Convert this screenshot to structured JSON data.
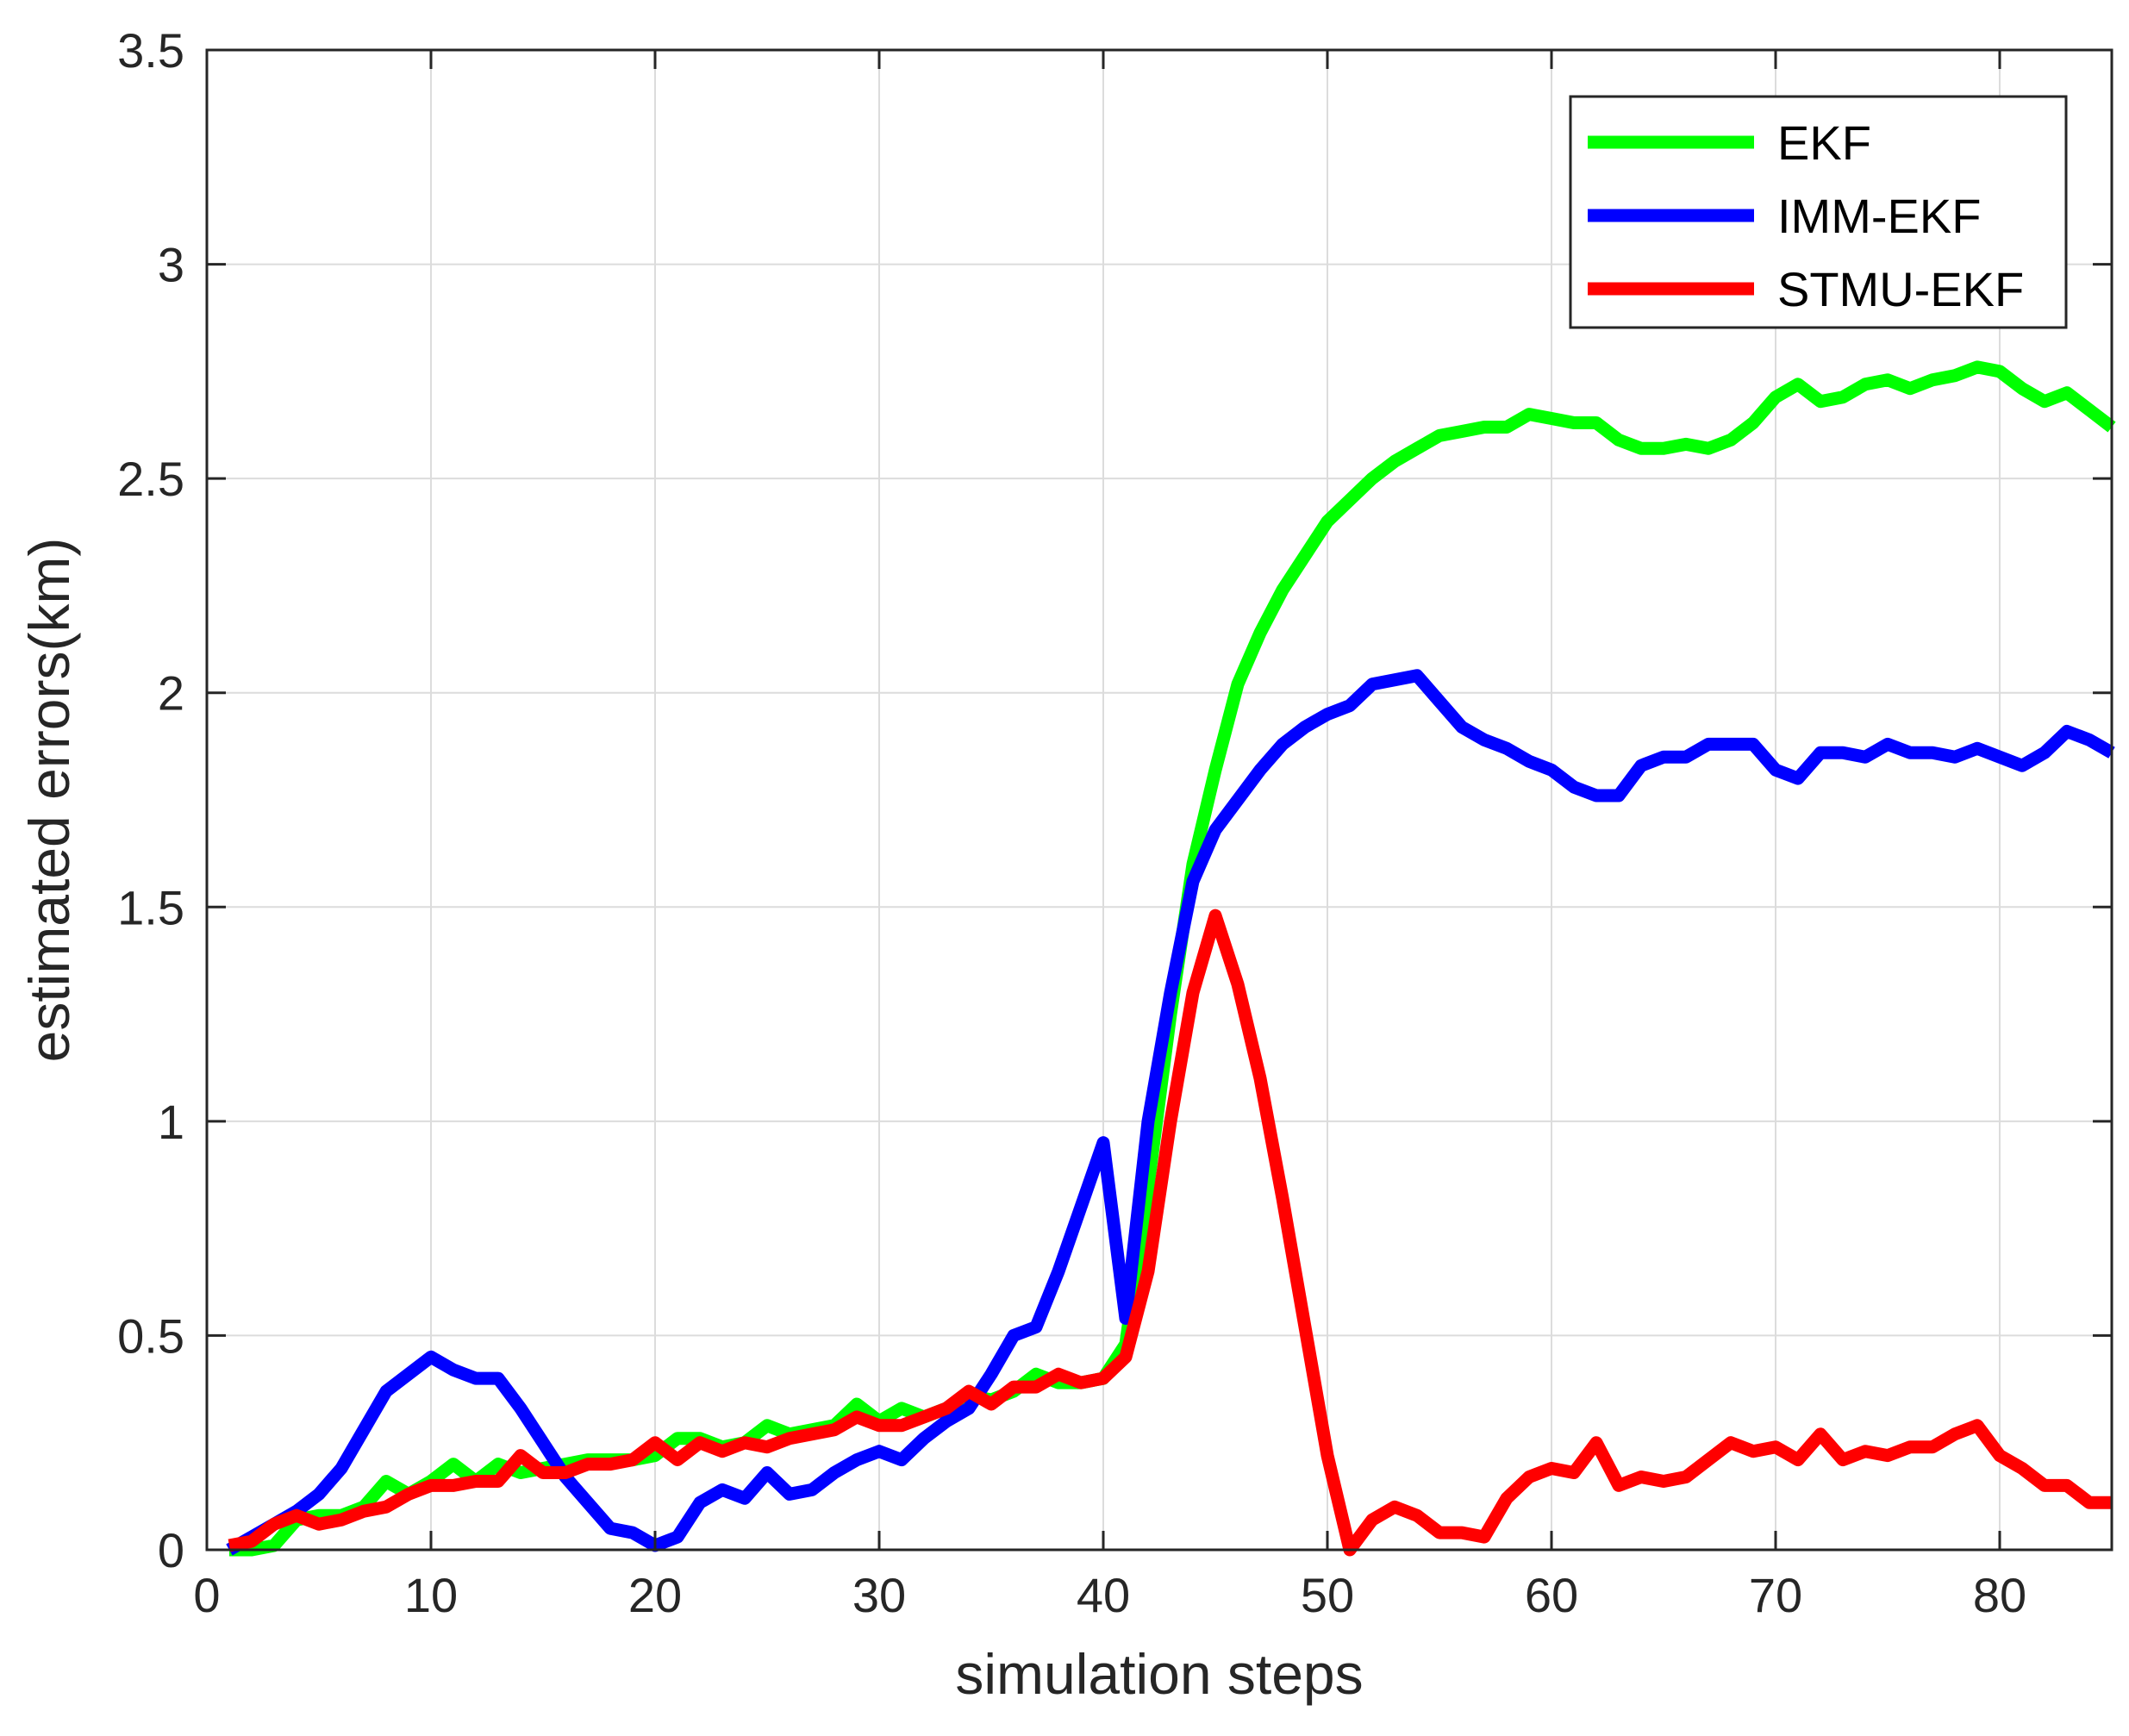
{
  "chart_data": {
    "type": "line",
    "title": "",
    "xlabel": "simulation steps",
    "ylabel": "estimated errors(km)",
    "xlim": [
      0,
      85
    ],
    "ylim": [
      0,
      3.5
    ],
    "xticks": [
      0,
      10,
      20,
      30,
      40,
      50,
      60,
      70,
      80
    ],
    "yticks": [
      0,
      0.5,
      1,
      1.5,
      2,
      2.5,
      3,
      3.5
    ],
    "xtick_labels": [
      "0",
      "10",
      "20",
      "30",
      "40",
      "50",
      "60",
      "70",
      "80"
    ],
    "ytick_labels": [
      "0",
      "0.5",
      "1",
      "1.5",
      "2",
      "2.5",
      "3",
      "3.5"
    ],
    "grid": true,
    "legend_position": "top-right",
    "x": [
      1,
      2,
      3,
      4,
      5,
      6,
      7,
      8,
      9,
      10,
      11,
      12,
      13,
      14,
      15,
      16,
      17,
      18,
      19,
      20,
      21,
      22,
      23,
      24,
      25,
      26,
      27,
      28,
      29,
      30,
      31,
      32,
      33,
      34,
      35,
      36,
      37,
      38,
      39,
      40,
      41,
      42,
      43,
      44,
      45,
      46,
      47,
      48,
      49,
      50,
      51,
      52,
      53,
      54,
      55,
      56,
      57,
      58,
      59,
      60,
      61,
      62,
      63,
      64,
      65,
      66,
      67,
      68,
      69,
      70,
      71,
      72,
      73,
      74,
      75,
      76,
      77,
      78,
      79,
      80,
      81,
      82,
      83,
      84,
      85
    ],
    "series": [
      {
        "name": "EKF",
        "color": "#00ff00",
        "values": [
          0.0,
          0.0,
          0.01,
          0.07,
          0.08,
          0.08,
          0.1,
          0.16,
          0.13,
          0.16,
          0.2,
          0.16,
          0.2,
          0.18,
          0.19,
          0.2,
          0.21,
          0.21,
          0.21,
          0.22,
          0.26,
          0.26,
          0.24,
          0.25,
          0.29,
          0.27,
          0.28,
          0.29,
          0.34,
          0.3,
          0.33,
          0.31,
          0.33,
          0.36,
          0.35,
          0.37,
          0.41,
          0.39,
          0.39,
          0.4,
          0.48,
          0.85,
          1.25,
          1.6,
          1.82,
          2.02,
          2.14,
          2.24,
          2.32,
          2.4,
          2.45,
          2.5,
          2.54,
          2.57,
          2.6,
          2.61,
          2.62,
          2.62,
          2.65,
          2.64,
          2.63,
          2.63,
          2.59,
          2.57,
          2.57,
          2.58,
          2.57,
          2.59,
          2.63,
          2.69,
          2.72,
          2.68,
          2.69,
          2.72,
          2.73,
          2.71,
          2.73,
          2.74,
          2.76,
          2.75,
          2.71,
          2.68,
          2.7,
          2.66,
          2.62
        ]
      },
      {
        "name": "IMM-EKF",
        "color": "#0000ff",
        "values": [
          0.0,
          0.03,
          0.06,
          0.09,
          0.13,
          0.19,
          0.28,
          0.37,
          0.41,
          0.45,
          0.42,
          0.4,
          0.4,
          0.33,
          0.25,
          0.17,
          0.11,
          0.05,
          0.04,
          0.01,
          0.03,
          0.11,
          0.14,
          0.12,
          0.18,
          0.13,
          0.14,
          0.18,
          0.21,
          0.23,
          0.21,
          0.26,
          0.3,
          0.33,
          0.41,
          0.5,
          0.52,
          0.65,
          0.8,
          0.95,
          0.54,
          1.0,
          1.3,
          1.56,
          1.68,
          1.75,
          1.82,
          1.88,
          1.92,
          1.95,
          1.97,
          2.02,
          2.03,
          2.04,
          1.98,
          1.92,
          1.89,
          1.87,
          1.84,
          1.82,
          1.78,
          1.76,
          1.76,
          1.83,
          1.85,
          1.85,
          1.88,
          1.88,
          1.88,
          1.82,
          1.8,
          1.86,
          1.86,
          1.85,
          1.88,
          1.86,
          1.86,
          1.85,
          1.87,
          1.85,
          1.83,
          1.86,
          1.91,
          1.89,
          1.86
        ]
      },
      {
        "name": "STMU-EKF",
        "color": "#ff0000",
        "values": [
          0.01,
          0.02,
          0.06,
          0.08,
          0.06,
          0.07,
          0.09,
          0.1,
          0.13,
          0.15,
          0.15,
          0.16,
          0.16,
          0.22,
          0.18,
          0.18,
          0.2,
          0.2,
          0.21,
          0.25,
          0.21,
          0.25,
          0.23,
          0.25,
          0.24,
          0.26,
          0.27,
          0.28,
          0.31,
          0.29,
          0.29,
          0.31,
          0.33,
          0.37,
          0.34,
          0.38,
          0.38,
          0.41,
          0.39,
          0.4,
          0.45,
          0.65,
          1.0,
          1.3,
          1.48,
          1.32,
          1.1,
          0.82,
          0.52,
          0.22,
          0.0,
          0.07,
          0.1,
          0.08,
          0.04,
          0.04,
          0.03,
          0.12,
          0.17,
          0.19,
          0.18,
          0.25,
          0.15,
          0.17,
          0.16,
          0.17,
          0.21,
          0.25,
          0.23,
          0.24,
          0.21,
          0.27,
          0.21,
          0.23,
          0.22,
          0.24,
          0.24,
          0.27,
          0.29,
          0.22,
          0.19,
          0.15,
          0.15,
          0.11,
          0.11
        ]
      }
    ]
  }
}
